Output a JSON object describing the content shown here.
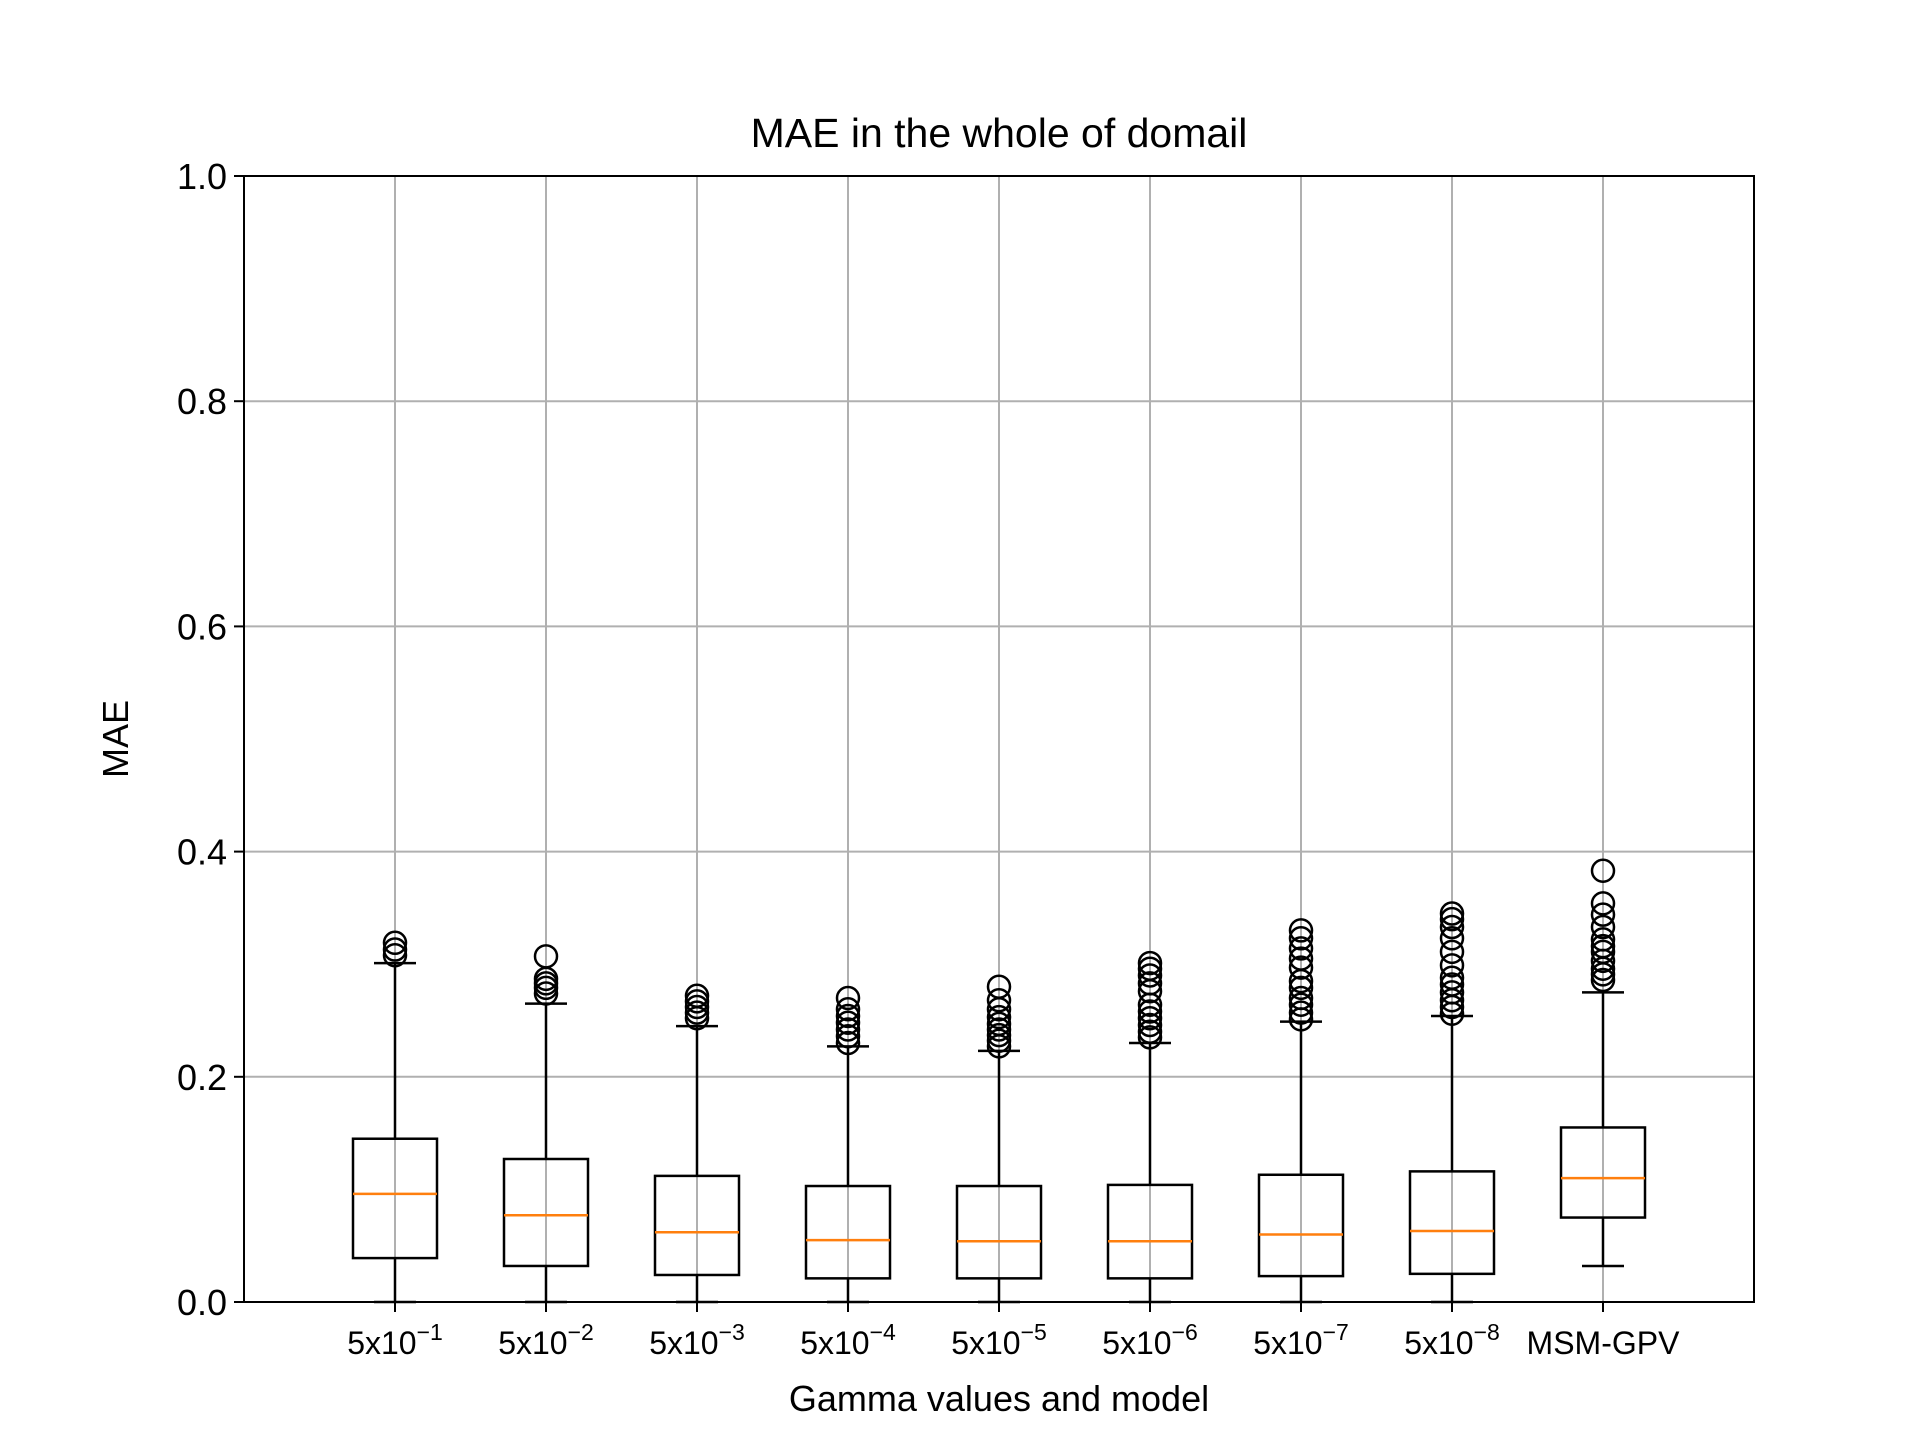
{
  "chart_data": {
    "type": "boxplot",
    "title": "MAE in the whole of domail",
    "xlabel": "Gamma values and model",
    "ylabel": "MAE",
    "ylim": [
      0,
      1.0
    ],
    "yticks": [
      "0.0",
      "0.2",
      "0.4",
      "0.6",
      "0.8",
      "1.0"
    ],
    "grid": true,
    "categories": [
      {
        "base": "5x10",
        "exp": "−1"
      },
      {
        "base": "5x10",
        "exp": "−2"
      },
      {
        "base": "5x10",
        "exp": "−3"
      },
      {
        "base": "5x10",
        "exp": "−4"
      },
      {
        "base": "5x10",
        "exp": "−5"
      },
      {
        "base": "5x10",
        "exp": "−6"
      },
      {
        "base": "5x10",
        "exp": "−7"
      },
      {
        "base": "5x10",
        "exp": "−8"
      },
      {
        "base": "MSM-GPV",
        "exp": ""
      }
    ],
    "boxes": [
      {
        "whislo": 0.0,
        "q1": 0.039,
        "med": 0.096,
        "q3": 0.145,
        "whishi": 0.301,
        "fliers": [
          0.308,
          0.313,
          0.319
        ]
      },
      {
        "whislo": 0.0,
        "q1": 0.032,
        "med": 0.077,
        "q3": 0.127,
        "whishi": 0.265,
        "fliers": [
          0.274,
          0.279,
          0.283,
          0.287,
          0.307
        ]
      },
      {
        "whislo": 0.0,
        "q1": 0.024,
        "med": 0.062,
        "q3": 0.112,
        "whishi": 0.245,
        "fliers": [
          0.252,
          0.257,
          0.262,
          0.267,
          0.272
        ]
      },
      {
        "whislo": 0.0,
        "q1": 0.021,
        "med": 0.055,
        "q3": 0.103,
        "whishi": 0.227,
        "fliers": [
          0.23,
          0.236,
          0.242,
          0.248,
          0.254,
          0.26,
          0.27
        ]
      },
      {
        "whislo": 0.0,
        "q1": 0.021,
        "med": 0.054,
        "q3": 0.103,
        "whishi": 0.223,
        "fliers": [
          0.227,
          0.232,
          0.237,
          0.242,
          0.247,
          0.253,
          0.26,
          0.268,
          0.28
        ]
      },
      {
        "whislo": 0.0,
        "q1": 0.021,
        "med": 0.054,
        "q3": 0.104,
        "whishi": 0.23,
        "fliers": [
          0.235,
          0.24,
          0.246,
          0.252,
          0.258,
          0.264,
          0.276,
          0.283,
          0.29,
          0.296,
          0.301
        ]
      },
      {
        "whislo": 0.0,
        "q1": 0.023,
        "med": 0.06,
        "q3": 0.113,
        "whishi": 0.249,
        "fliers": [
          0.251,
          0.257,
          0.264,
          0.27,
          0.279,
          0.285,
          0.297,
          0.305,
          0.314,
          0.323,
          0.33
        ]
      },
      {
        "whislo": 0.0,
        "q1": 0.025,
        "med": 0.063,
        "q3": 0.116,
        "whishi": 0.254,
        "fliers": [
          0.256,
          0.262,
          0.268,
          0.275,
          0.282,
          0.288,
          0.299,
          0.311,
          0.323,
          0.333,
          0.34,
          0.345
        ]
      },
      {
        "whislo": 0.032,
        "q1": 0.075,
        "med": 0.11,
        "q3": 0.155,
        "whishi": 0.275,
        "fliers": [
          0.286,
          0.291,
          0.296,
          0.303,
          0.311,
          0.316,
          0.322,
          0.333,
          0.344,
          0.354,
          0.383
        ]
      }
    ],
    "colors": {
      "box": "#000000",
      "median": "#ff7f0e",
      "grid": "#b0b0b0",
      "axes": "#000000"
    }
  }
}
